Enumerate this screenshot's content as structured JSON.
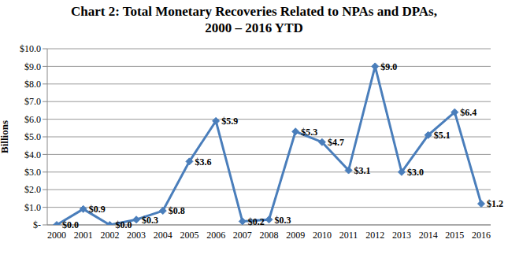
{
  "chart_data": {
    "type": "line",
    "title": "Chart 2: Total Monetary Recoveries Related to NPAs and DPAs, 2000 – 2016 YTD",
    "y_label": "Billions",
    "categories": [
      "2000",
      "2001",
      "2002",
      "2003",
      "2004",
      "2005",
      "2006",
      "2007",
      "2008",
      "2009",
      "2010",
      "2011",
      "2012",
      "2013",
      "2014",
      "2015",
      "2016"
    ],
    "values": [
      0.0,
      0.9,
      0.0,
      0.3,
      0.8,
      3.6,
      5.9,
      0.2,
      0.3,
      5.3,
      4.7,
      3.1,
      9.0,
      3.0,
      5.1,
      6.4,
      1.2
    ],
    "value_labels": [
      "$0.0",
      "$0.9",
      "$0.0",
      "$0.3",
      "$0.8",
      "$3.6",
      "$5.9",
      "$0.2",
      "$0.3",
      "$5.3",
      "$4.7",
      "$3.1",
      "$9.0",
      "$3.0",
      "$5.1",
      "$6.4",
      "$1.2"
    ],
    "color": "#4a7ebb",
    "marker": "diamond",
    "data_labels": true,
    "grid": true,
    "ylim": [
      0,
      10
    ],
    "yticks": [
      {
        "value": 0,
        "label": "$-"
      },
      {
        "value": 1,
        "label": "$1.0"
      },
      {
        "value": 2,
        "label": "$2.0"
      },
      {
        "value": 3,
        "label": "$3.0"
      },
      {
        "value": 4,
        "label": "$4.0"
      },
      {
        "value": 5,
        "label": "$5.0"
      },
      {
        "value": 6,
        "label": "$6.0"
      },
      {
        "value": 7,
        "label": "$7.0"
      },
      {
        "value": 8,
        "label": "$8.0"
      },
      {
        "value": 9,
        "label": "$9.0"
      },
      {
        "value": 10,
        "label": "$10.0"
      }
    ]
  }
}
